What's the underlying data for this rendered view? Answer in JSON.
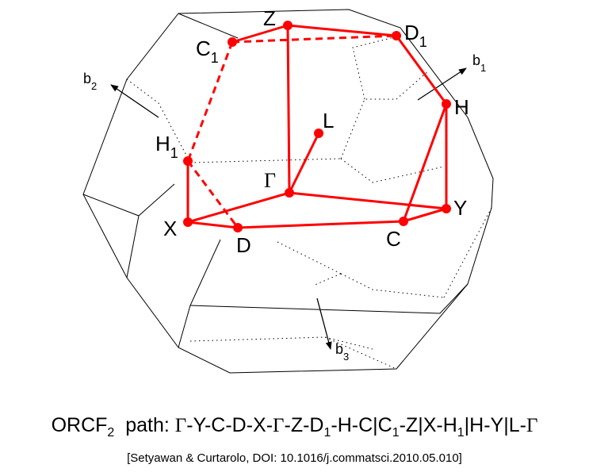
{
  "diagram": {
    "points": [
      {
        "id": "Z",
        "label": "Z",
        "sub": ""
      },
      {
        "id": "D1",
        "label": "D",
        "sub": "1"
      },
      {
        "id": "C1",
        "label": "C",
        "sub": "1"
      },
      {
        "id": "H",
        "label": "H",
        "sub": ""
      },
      {
        "id": "L",
        "label": "L",
        "sub": ""
      },
      {
        "id": "H1",
        "label": "H",
        "sub": "1"
      },
      {
        "id": "Gamma",
        "label": "Γ",
        "sub": ""
      },
      {
        "id": "Y",
        "label": "Y",
        "sub": ""
      },
      {
        "id": "X",
        "label": "X",
        "sub": ""
      },
      {
        "id": "C",
        "label": "C",
        "sub": ""
      },
      {
        "id": "D",
        "label": "D",
        "sub": ""
      }
    ],
    "vectors": [
      {
        "id": "b1",
        "label": "b",
        "sub": "1"
      },
      {
        "id": "b2",
        "label": "b",
        "sub": "2"
      },
      {
        "id": "b3",
        "label": "b",
        "sub": "3"
      }
    ],
    "colors": {
      "path": "#ff0000",
      "edges": "#000000"
    }
  },
  "caption": {
    "lattice": "ORCF",
    "lattice_sub": "2",
    "path_label": "path:",
    "segments": [
      {
        "t": "Γ",
        "greek": true
      },
      {
        "t": "-Y-C-D-X-"
      },
      {
        "t": "Γ",
        "greek": true
      },
      {
        "t": "-Z-D"
      },
      {
        "t": "1",
        "sub": true
      },
      {
        "t": "-H-C|C"
      },
      {
        "t": "1",
        "sub": true
      },
      {
        "t": "-Z|X-H"
      },
      {
        "t": "1",
        "sub": true
      },
      {
        "t": "|H-Y|L-"
      },
      {
        "t": "Γ",
        "greek": true
      }
    ]
  },
  "citation": "[Setyawan & Curtarolo, DOI: 10.1016/j.commatsci.2010.05.010]"
}
